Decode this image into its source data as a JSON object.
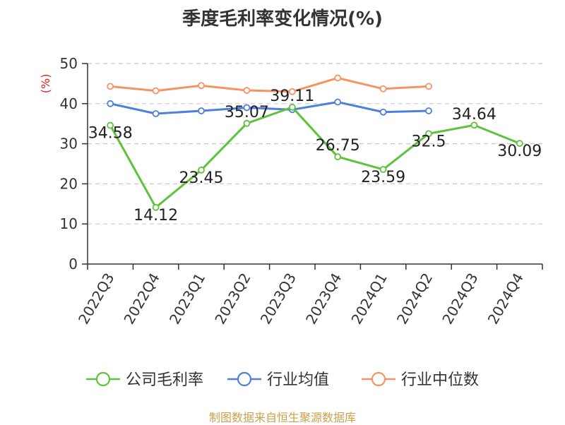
{
  "title": "季度毛利率变化情况(%)",
  "source": "制图数据来自恒生聚源数据库",
  "chart_data": {
    "type": "line",
    "title": "季度毛利率变化情况(%)",
    "ylabel": "(%)",
    "xlabel": "",
    "ylim": [
      0,
      50
    ],
    "yticks": [
      0,
      10,
      20,
      30,
      40,
      50
    ],
    "grid": true,
    "legend_position": "bottom",
    "categories": [
      "2022Q3",
      "2022Q4",
      "2023Q1",
      "2023Q2",
      "2023Q3",
      "2023Q4",
      "2024Q1",
      "2024Q2",
      "2024Q3",
      "2024Q4"
    ],
    "series": [
      {
        "name": "公司毛利率",
        "color": "#5cc33a",
        "values": [
          34.58,
          14.12,
          23.45,
          35.07,
          39.11,
          26.75,
          23.59,
          32.5,
          34.64,
          30.09
        ],
        "labels": [
          "34.58",
          "14.12",
          "23.45",
          "35.07",
          "39.11",
          "26.75",
          "23.59",
          "32.5",
          "34.64",
          "30.09"
        ]
      },
      {
        "name": "行业均值",
        "color": "#4f7fdc",
        "values": [
          40.0,
          37.5,
          38.2,
          39.0,
          38.5,
          40.4,
          37.9,
          38.2,
          null,
          null
        ]
      },
      {
        "name": "行业中位数",
        "color": "#f59363",
        "values": [
          44.3,
          43.2,
          44.5,
          43.3,
          43.0,
          46.4,
          43.7,
          44.3,
          null,
          null
        ]
      }
    ]
  }
}
